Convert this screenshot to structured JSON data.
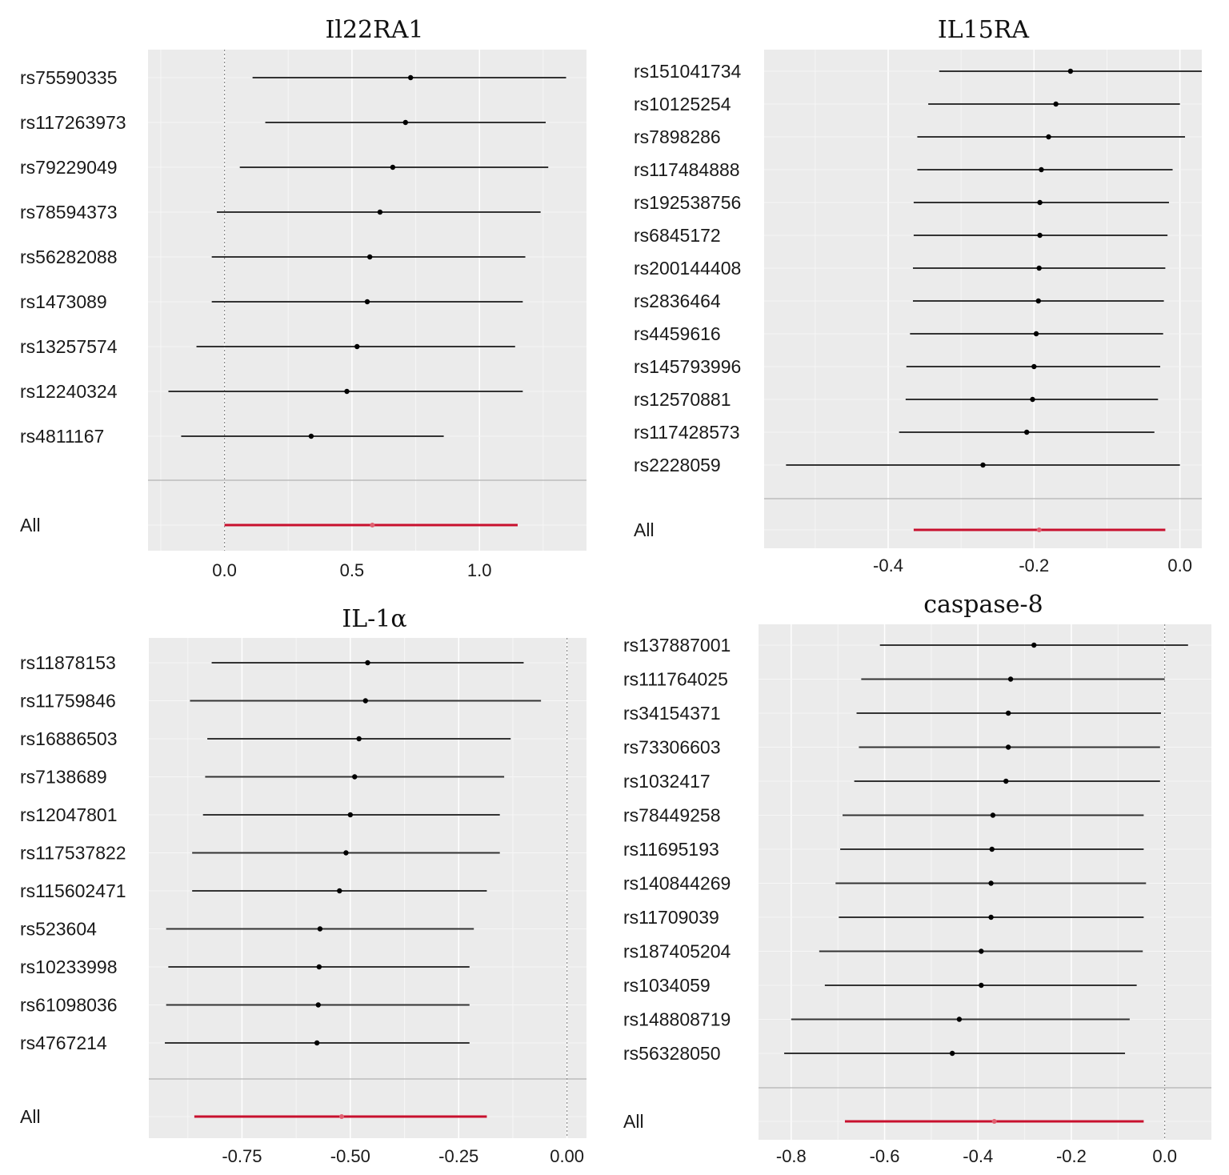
{
  "chart_data": [
    {
      "type": "forest",
      "title": "Il22RA1",
      "xlim": [
        -0.3,
        1.42
      ],
      "xticks": [
        0.0,
        0.5,
        1.0
      ],
      "xtick_labels": [
        "0.0",
        "0.5",
        "1.0"
      ],
      "reference_x": 0,
      "grid": true,
      "rows": [
        {
          "label": "rs75590335",
          "estimate": 0.73,
          "lower": 0.11,
          "upper": 1.34
        },
        {
          "label": "rs117263973",
          "estimate": 0.71,
          "lower": 0.16,
          "upper": 1.26
        },
        {
          "label": "rs79229049",
          "estimate": 0.66,
          "lower": 0.06,
          "upper": 1.27
        },
        {
          "label": "rs78594373",
          "estimate": 0.61,
          "lower": -0.03,
          "upper": 1.24
        },
        {
          "label": "rs56282088",
          "estimate": 0.57,
          "lower": -0.05,
          "upper": 1.18
        },
        {
          "label": "rs1473089",
          "estimate": 0.56,
          "lower": -0.05,
          "upper": 1.17
        },
        {
          "label": "rs13257574",
          "estimate": 0.52,
          "lower": -0.11,
          "upper": 1.14
        },
        {
          "label": "rs12240324",
          "estimate": 0.48,
          "lower": -0.22,
          "upper": 1.17
        },
        {
          "label": "rs4811167",
          "estimate": 0.34,
          "lower": -0.17,
          "upper": 0.86
        }
      ],
      "overall": {
        "label": "All",
        "estimate": 0.58,
        "lower": 0.0,
        "upper": 1.15
      }
    },
    {
      "type": "forest",
      "title": "IL15RA",
      "xlim": [
        -0.57,
        0.03
      ],
      "xticks": [
        -0.4,
        -0.2,
        0.0
      ],
      "xtick_labels": [
        "-0.4",
        "-0.2",
        "0.0"
      ],
      "reference_x": null,
      "grid": true,
      "rows": [
        {
          "label": "rs151041734",
          "estimate": -0.15,
          "lower": -0.33,
          "upper": 0.03
        },
        {
          "label": "rs10125254",
          "estimate": -0.17,
          "lower": -0.345,
          "upper": 0.0
        },
        {
          "label": "rs7898286",
          "estimate": -0.18,
          "lower": -0.36,
          "upper": 0.007
        },
        {
          "label": "rs117484888",
          "estimate": -0.19,
          "lower": -0.36,
          "upper": -0.01
        },
        {
          "label": "rs192538756",
          "estimate": -0.192,
          "lower": -0.365,
          "upper": -0.015
        },
        {
          "label": "rs6845172",
          "estimate": -0.192,
          "lower": -0.365,
          "upper": -0.017
        },
        {
          "label": "rs200144408",
          "estimate": -0.193,
          "lower": -0.366,
          "upper": -0.02
        },
        {
          "label": "rs2836464",
          "estimate": -0.194,
          "lower": -0.366,
          "upper": -0.022
        },
        {
          "label": "rs4459616",
          "estimate": -0.197,
          "lower": -0.37,
          "upper": -0.023
        },
        {
          "label": "rs145793996",
          "estimate": -0.2,
          "lower": -0.375,
          "upper": -0.027
        },
        {
          "label": "rs12570881",
          "estimate": -0.202,
          "lower": -0.376,
          "upper": -0.03
        },
        {
          "label": "rs117428573",
          "estimate": -0.21,
          "lower": -0.385,
          "upper": -0.035
        },
        {
          "label": "rs2228059",
          "estimate": -0.27,
          "lower": -0.54,
          "upper": 0.0
        }
      ],
      "overall": {
        "label": "All",
        "estimate": -0.193,
        "lower": -0.365,
        "upper": -0.02
      }
    },
    {
      "type": "forest",
      "title": "IL-1α",
      "xlim": [
        -0.965,
        0.045
      ],
      "xticks": [
        -0.75,
        -0.5,
        -0.25,
        0.0
      ],
      "xtick_labels": [
        "-0.75",
        "-0.50",
        "-0.25",
        "0.00"
      ],
      "reference_x": 0,
      "grid": true,
      "rows": [
        {
          "label": "rs11878153",
          "estimate": -0.46,
          "lower": -0.82,
          "upper": -0.1
        },
        {
          "label": "rs11759846",
          "estimate": -0.465,
          "lower": -0.87,
          "upper": -0.06
        },
        {
          "label": "rs16886503",
          "estimate": -0.48,
          "lower": -0.83,
          "upper": -0.13
        },
        {
          "label": "rs7138689",
          "estimate": -0.49,
          "lower": -0.835,
          "upper": -0.145
        },
        {
          "label": "rs12047801",
          "estimate": -0.5,
          "lower": -0.84,
          "upper": -0.155
        },
        {
          "label": "rs117537822",
          "estimate": -0.51,
          "lower": -0.865,
          "upper": -0.155
        },
        {
          "label": "rs115602471",
          "estimate": -0.525,
          "lower": -0.865,
          "upper": -0.185
        },
        {
          "label": "rs523604",
          "estimate": -0.57,
          "lower": -0.925,
          "upper": -0.215
        },
        {
          "label": "rs10233998",
          "estimate": -0.572,
          "lower": -0.92,
          "upper": -0.225
        },
        {
          "label": "rs61098036",
          "estimate": -0.574,
          "lower": -0.925,
          "upper": -0.225
        },
        {
          "label": "rs4767214",
          "estimate": -0.577,
          "lower": -0.928,
          "upper": -0.225
        }
      ],
      "overall": {
        "label": "All",
        "estimate": -0.52,
        "lower": -0.86,
        "upper": -0.185
      }
    },
    {
      "type": "forest",
      "title": "caspase-8",
      "xlim": [
        -0.87,
        0.1
      ],
      "xticks": [
        -0.8,
        -0.6,
        -0.4,
        -0.2,
        0.0
      ],
      "xtick_labels": [
        "-0.8",
        "-0.6",
        "-0.4",
        "-0.2",
        "0.0"
      ],
      "reference_x": 0,
      "grid": true,
      "rows": [
        {
          "label": "rs137887001",
          "estimate": -0.28,
          "lower": -0.61,
          "upper": 0.05
        },
        {
          "label": "rs111764025",
          "estimate": -0.33,
          "lower": -0.65,
          "upper": 0.0
        },
        {
          "label": "rs34154371",
          "estimate": -0.335,
          "lower": -0.66,
          "upper": -0.008
        },
        {
          "label": "rs73306603",
          "estimate": -0.335,
          "lower": -0.655,
          "upper": -0.01
        },
        {
          "label": "rs1032417",
          "estimate": -0.34,
          "lower": -0.665,
          "upper": -0.01
        },
        {
          "label": "rs78449258",
          "estimate": -0.368,
          "lower": -0.69,
          "upper": -0.045
        },
        {
          "label": "rs11695193",
          "estimate": -0.37,
          "lower": -0.695,
          "upper": -0.045
        },
        {
          "label": "rs140844269",
          "estimate": -0.372,
          "lower": -0.705,
          "upper": -0.04
        },
        {
          "label": "rs11709039",
          "estimate": -0.372,
          "lower": -0.698,
          "upper": -0.045
        },
        {
          "label": "rs187405204",
          "estimate": -0.393,
          "lower": -0.74,
          "upper": -0.047
        },
        {
          "label": "rs1034059",
          "estimate": -0.393,
          "lower": -0.728,
          "upper": -0.06
        },
        {
          "label": "rs148808719",
          "estimate": -0.44,
          "lower": -0.8,
          "upper": -0.075
        },
        {
          "label": "rs56328050",
          "estimate": -0.455,
          "lower": -0.815,
          "upper": -0.085
        }
      ],
      "overall": {
        "label": "All",
        "estimate": -0.365,
        "lower": -0.685,
        "upper": -0.045
      }
    }
  ]
}
